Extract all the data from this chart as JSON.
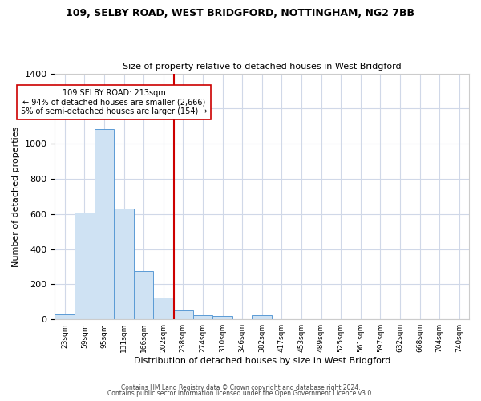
{
  "title1": "109, SELBY ROAD, WEST BRIDGFORD, NOTTINGHAM, NG2 7BB",
  "title2": "Size of property relative to detached houses in West Bridgford",
  "xlabel": "Distribution of detached houses by size in West Bridgford",
  "ylabel": "Number of detached properties",
  "bin_labels": [
    "23sqm",
    "59sqm",
    "95sqm",
    "131sqm",
    "166sqm",
    "202sqm",
    "238sqm",
    "274sqm",
    "310sqm",
    "346sqm",
    "382sqm",
    "417sqm",
    "453sqm",
    "489sqm",
    "525sqm",
    "561sqm",
    "597sqm",
    "632sqm",
    "668sqm",
    "704sqm",
    "740sqm"
  ],
  "bar_heights": [
    30,
    610,
    1085,
    630,
    275,
    125,
    50,
    25,
    20,
    0,
    25,
    0,
    0,
    0,
    0,
    0,
    0,
    0,
    0,
    0,
    0
  ],
  "bar_color": "#cfe2f3",
  "bar_edge_color": "#5b9bd5",
  "vline_x": 5.55,
  "vline_color": "#cc0000",
  "annotation_text": "109 SELBY ROAD: 213sqm\n← 94% of detached houses are smaller (2,666)\n5% of semi-detached houses are larger (154) →",
  "annotation_box_color": "#ffffff",
  "annotation_box_edge": "#cc0000",
  "ylim": [
    0,
    1400
  ],
  "yticks": [
    0,
    200,
    400,
    600,
    800,
    1000,
    1200,
    1400
  ],
  "footer1": "Contains HM Land Registry data © Crown copyright and database right 2024.",
  "footer2": "Contains public sector information licensed under the Open Government Licence v3.0.",
  "bg_color": "#ffffff",
  "plot_bg_color": "#ffffff",
  "grid_color": "#d0d8e8"
}
